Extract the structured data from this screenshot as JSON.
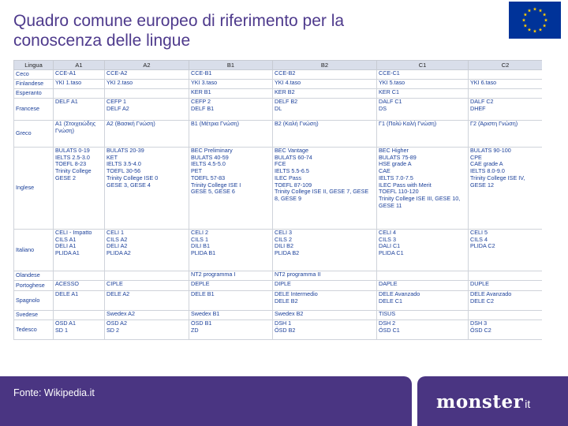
{
  "header": {
    "title_line1": "Quadro comune europeo di riferimento per la",
    "title_line2": "conoscenza delle lingue",
    "flag_icon": "eu-flag-icon"
  },
  "colors": {
    "brand_purple": "#4a3582",
    "title_color": "#4e3a8c",
    "eu_blue": "#003399",
    "eu_gold": "#ffcc00",
    "table_text": "#1a3f99"
  },
  "table": {
    "columns": [
      "Lingua",
      "A1",
      "A2",
      "B1",
      "B2",
      "C1",
      "C2"
    ],
    "rows": [
      [
        "Ceco",
        "CCE-A1",
        "CCE-A2",
        "CCE-B1",
        "CCE-B2",
        "CCE-C1",
        ""
      ],
      [
        "Finlandese",
        "YKI 1.taso",
        "YKI 2.taso",
        "YKI 3.taso",
        "YKI 4.taso",
        "YKI 5.taso",
        "YKI 6.taso"
      ],
      [
        "Esperanto",
        "",
        "",
        "KER B1",
        "KER B2",
        "KER C1",
        ""
      ],
      [
        "Francese",
        "DELF A1",
        "CEFP 1\nDELF A2",
        "CEFP 2\nDELF B1",
        "DELF B2\nDL",
        "DALF C1\nDS",
        "DALF C2\nDHEF"
      ],
      [
        "Greco",
        "A1 (Στοιχειώδης Γνώση)",
        "A2 (Βασική Γνώση)",
        "B1 (Μέτρια Γνώση)",
        "B2 (Καλή Γνώση)",
        "Γ1 (Πολύ Καλή Γνώση)",
        "Γ2 (Άριστη Γνώση)"
      ],
      [
        "Inglese",
        "BULATS 0-19\nIELTS 2.5-3.0\nTOEFL 8-23\nTrinity College\nGESE 2",
        "BULATS 20-39\nKET\nIELTS 3.5-4.0\nTOEFL 30-56\nTrinity College ISE 0\nGESE 3, GESE 4",
        "BEC Preliminary\nBULATS 40-59\nIELTS 4.5-5.0\nPET\nTOEFL 57-83\nTrinity College ISE I\nGESE 5, GESE 6",
        "BEC Vantage\nBULATS 60-74\nFCE\nIELTS 5.5-6.5\nILEC Pass\nTOEFL 87-109\nTrinity College ISE II, GESE 7, GESE 8, GESE 9",
        "BEC Higher\nBULATS 75-89\nHSE grade A\nCAE\nIELTS 7.0-7.5\nILEC Pass with Merit\nTOEFL 110-120\nTrinity College ISE III, GESE 10, GESE 11",
        "BULATS 90-100\nCPE\nCAE grade A\nIELTS 8.0-9.0\nTrinity College ISE IV, GESE 12"
      ],
      [
        "Italiano",
        "CELI - Impatto\nCILS A1\nDELI A1\nPLIDA A1",
        "CELI 1\nCILS A2\nDELI A2\nPLIDA A2",
        "CELI 2\nCILS 1\nDILI B1\nPLIDA B1",
        "CELI 3\nCILS 2\nDILI B2\nPLIDA B2",
        "CELI 4\nCILS 3\nDALI C1\nPLIDA C1",
        "CELI 5\nCILS 4\nPLIDA C2"
      ],
      [
        "Olandese",
        "",
        "",
        "NT2 programma I",
        "NT2 programma II",
        "",
        ""
      ],
      [
        "Portoghese",
        "ACESSO",
        "CIPLE",
        "DEPLE",
        "DIPLE",
        "DAPLE",
        "DUPLE"
      ],
      [
        "Spagnolo",
        "DELE A1",
        "DELE A2",
        "DELE B1",
        "DELE Intermedio\nDELE B2",
        "DELE Avanzado\nDELE C1",
        "DELE Avanzado\nDELE C2"
      ],
      [
        "Svedese",
        "",
        "Swedex A2",
        "Swedex B1",
        "Swedex B2",
        "TISUS",
        ""
      ],
      [
        "Tedesco",
        "ÖSD A1\nSD 1",
        "ÖSD A2\nSD 2",
        "ÖSD B1\nZD",
        "DSH 1\nÖSD B2",
        "DSH 2\nÖSD C1",
        "DSH 3\nÖSD C2"
      ]
    ]
  },
  "footer": {
    "source": "Fonte: Wikipedia.it",
    "logo_main": "monster",
    "logo_suffix": "it"
  }
}
